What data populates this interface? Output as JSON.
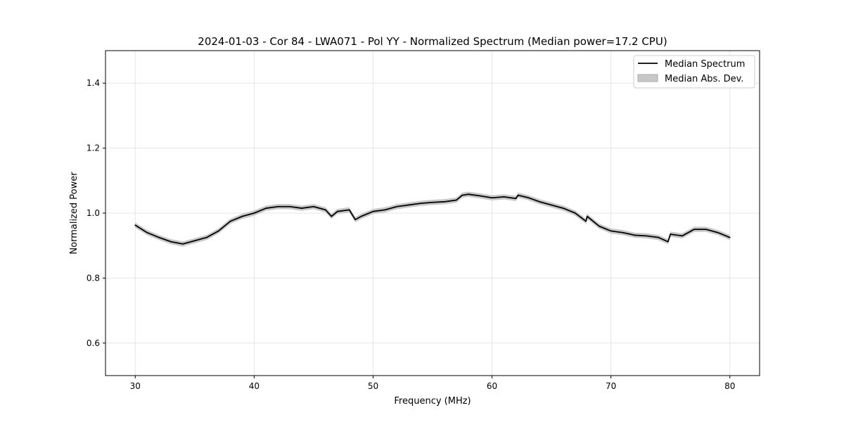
{
  "chart_data": {
    "type": "line",
    "title": "2024-01-03 - Cor 84 - LWA071 - Pol YY - Normalized Spectrum (Median power=17.2 CPU)",
    "xlabel": "Frequency (MHz)",
    "ylabel": "Normalized Power",
    "xlim": [
      27.5,
      82.5
    ],
    "ylim": [
      0.5,
      1.5
    ],
    "xticks": [
      30,
      40,
      50,
      60,
      70,
      80
    ],
    "xtick_labels": [
      "30",
      "40",
      "50",
      "60",
      "70",
      "80"
    ],
    "yticks": [
      0.6,
      0.8,
      1.0,
      1.2,
      1.4
    ],
    "ytick_labels": [
      "0.6",
      "0.8",
      "1.0",
      "1.2",
      "1.4"
    ],
    "grid": true,
    "legend": {
      "placement": "top-right",
      "entries": [
        "Median Spectrum",
        "Median Abs. Dev."
      ]
    },
    "series": [
      {
        "name": "Median Spectrum",
        "color": "#000000",
        "x": [
          30,
          31,
          32,
          33,
          34,
          35,
          36,
          37,
          38,
          39,
          40,
          41,
          42,
          43,
          44,
          45,
          46,
          46.5,
          47,
          48,
          48.5,
          49,
          50,
          51,
          52,
          53,
          54,
          55,
          56,
          57,
          57.5,
          58,
          59,
          60,
          61,
          62,
          62.2,
          63,
          64,
          65,
          66,
          67,
          67.9,
          68,
          69,
          70,
          71,
          72,
          73,
          74,
          74.8,
          75,
          76,
          77,
          78,
          79,
          80
        ],
        "y": [
          0.963,
          0.94,
          0.925,
          0.912,
          0.905,
          0.915,
          0.925,
          0.945,
          0.975,
          0.99,
          1.0,
          1.015,
          1.02,
          1.02,
          1.015,
          1.02,
          1.01,
          0.99,
          1.005,
          1.01,
          0.98,
          0.99,
          1.005,
          1.01,
          1.02,
          1.025,
          1.03,
          1.033,
          1.035,
          1.04,
          1.055,
          1.058,
          1.053,
          1.047,
          1.05,
          1.045,
          1.055,
          1.048,
          1.035,
          1.025,
          1.015,
          1.0,
          0.975,
          0.99,
          0.96,
          0.945,
          0.94,
          0.932,
          0.93,
          0.925,
          0.912,
          0.935,
          0.93,
          0.95,
          0.95,
          0.94,
          0.925
        ]
      },
      {
        "name": "Median Abs. Dev.",
        "color": "#c8c8c8",
        "band_halfwidth": 0.008
      }
    ]
  }
}
